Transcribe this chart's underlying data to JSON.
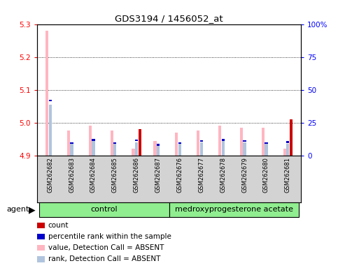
{
  "title": "GDS3194 / 1456052_at",
  "samples": [
    "GSM262682",
    "GSM262683",
    "GSM262684",
    "GSM262685",
    "GSM262686",
    "GSM262687",
    "GSM262676",
    "GSM262677",
    "GSM262678",
    "GSM262679",
    "GSM262680",
    "GSM262681"
  ],
  "value_absent": [
    5.28,
    4.975,
    4.99,
    4.975,
    4.92,
    4.945,
    4.97,
    4.975,
    4.99,
    4.985,
    4.985,
    4.92
  ],
  "rank_absent": [
    5.055,
    4.935,
    4.945,
    4.935,
    4.94,
    4.93,
    4.935,
    4.94,
    4.945,
    4.94,
    4.935,
    4.935
  ],
  "count_red": [
    4.9,
    4.9,
    4.9,
    4.9,
    4.98,
    4.9,
    4.9,
    4.9,
    4.9,
    4.9,
    4.9,
    5.01
  ],
  "pct_rank_blue": [
    5.065,
    4.935,
    4.945,
    4.935,
    4.944,
    4.93,
    4.935,
    4.942,
    4.945,
    4.942,
    4.935,
    4.938
  ],
  "ylim": [
    4.9,
    5.3
  ],
  "yticks_left": [
    4.9,
    5.0,
    5.1,
    5.2,
    5.3
  ],
  "yticks_right": [
    0,
    25,
    50,
    75,
    100
  ],
  "bg_color": "#d3d3d3",
  "control_color": "#90ee90",
  "treat_color": "#90ee90",
  "bar_width": 0.15,
  "color_value_absent": "#ffb6c1",
  "color_rank_absent": "#b0c4de",
  "color_count": "#cc0000",
  "color_pct": "#0000cc",
  "legend_items": [
    {
      "color": "#cc0000",
      "label": "count"
    },
    {
      "color": "#0000cc",
      "label": "percentile rank within the sample"
    },
    {
      "color": "#ffb6c1",
      "label": "value, Detection Call = ABSENT"
    },
    {
      "color": "#b0c4de",
      "label": "rank, Detection Call = ABSENT"
    }
  ],
  "n_control": 6,
  "n_treat": 6
}
